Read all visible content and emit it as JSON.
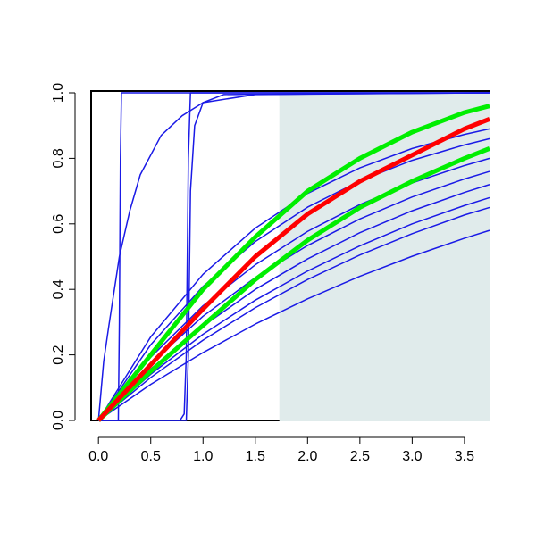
{
  "chart_data": {
    "type": "line",
    "xlim": [
      -0.07,
      3.74
    ],
    "ylim": [
      0,
      1
    ],
    "xticks": [
      {
        "value": 0,
        "label": "0.0"
      },
      {
        "value": 0.5,
        "label": "0.5"
      },
      {
        "value": 1,
        "label": "1.0"
      },
      {
        "value": 1.5,
        "label": "1.5"
      },
      {
        "value": 2,
        "label": "2.0"
      },
      {
        "value": 2.5,
        "label": "2.5"
      },
      {
        "value": 3,
        "label": "3.0"
      },
      {
        "value": 3.5,
        "label": "3.5"
      }
    ],
    "yticks": [
      {
        "value": 0,
        "label": "0.0"
      },
      {
        "value": 0.2,
        "label": "0.2"
      },
      {
        "value": 0.4,
        "label": "0.4"
      },
      {
        "value": 0.6,
        "label": "0.6"
      },
      {
        "value": 0.8,
        "label": "0.8"
      },
      {
        "value": 1,
        "label": "1.0"
      }
    ],
    "shaded_region": {
      "xlim": [
        1.73,
        3.74
      ],
      "color": "#e0ebeb"
    },
    "series": [
      {
        "color": "#1a1ae6",
        "width": 1.5,
        "x": [
          0,
          0.5,
          1,
          1.5,
          2,
          2.5,
          3,
          3.5,
          3.74
        ],
        "values": [
          0,
          0.255,
          0.446,
          0.587,
          0.693,
          0.771,
          0.83,
          0.873,
          0.89
        ]
      },
      {
        "color": "#1a1ae6",
        "width": 1.5,
        "x": [
          0,
          0.5,
          1,
          1.5,
          2,
          2.5,
          3,
          3.5,
          3.74
        ],
        "values": [
          0,
          0.231,
          0.409,
          0.546,
          0.651,
          0.731,
          0.794,
          0.841,
          0.86
        ]
      },
      {
        "color": "#1a1ae6",
        "width": 1.5,
        "x": [
          0,
          0.5,
          1,
          1.5,
          2,
          2.5,
          3,
          3.5,
          3.74
        ],
        "values": [
          0,
          0.193,
          0.35,
          0.475,
          0.577,
          0.659,
          0.725,
          0.778,
          0.8
        ]
      },
      {
        "color": "#1a1ae6",
        "width": 1.5,
        "x": [
          0,
          0.5,
          1,
          1.5,
          2,
          2.5,
          3,
          3.5,
          3.74
        ],
        "values": [
          0,
          0.174,
          0.318,
          0.436,
          0.534,
          0.615,
          0.682,
          0.737,
          0.76
        ]
      },
      {
        "color": "#1a1ae6",
        "width": 1.5,
        "x": [
          0,
          0.5,
          1,
          1.5,
          2,
          2.5,
          3,
          3.5,
          3.74
        ],
        "values": [
          0,
          0.157,
          0.288,
          0.4,
          0.493,
          0.573,
          0.64,
          0.696,
          0.72
        ]
      },
      {
        "color": "#1a1ae6",
        "width": 1.5,
        "x": [
          0,
          0.5,
          1,
          1.5,
          2,
          2.5,
          3,
          3.5,
          3.74
        ],
        "values": [
          0,
          0.141,
          0.263,
          0.367,
          0.456,
          0.533,
          0.6,
          0.656,
          0.68
        ]
      },
      {
        "color": "#1a1ae6",
        "width": 1.5,
        "x": [
          0,
          0.5,
          1,
          1.5,
          2,
          2.5,
          3,
          3.5,
          3.74
        ],
        "values": [
          0,
          0.131,
          0.245,
          0.344,
          0.43,
          0.505,
          0.57,
          0.627,
          0.65
        ]
      },
      {
        "color": "#1a1ae6",
        "width": 1.5,
        "x": [
          0,
          0.5,
          1,
          1.5,
          2,
          2.5,
          3,
          3.5,
          3.74
        ],
        "values": [
          0,
          0.11,
          0.207,
          0.294,
          0.371,
          0.44,
          0.501,
          0.556,
          0.58
        ]
      },
      {
        "color": "#1a1ae6",
        "width": 1.5,
        "x": [
          0,
          0.05,
          0.1,
          0.2,
          0.3,
          0.4,
          0.6,
          0.8,
          1,
          1.5,
          3.74
        ],
        "values": [
          0,
          0.18,
          0.29,
          0.5,
          0.64,
          0.75,
          0.87,
          0.93,
          0.97,
          0.995,
          1
        ]
      },
      {
        "color": "#1a1ae6",
        "width": 1.5,
        "x": [
          0,
          0.19,
          0.2,
          0.21,
          0.22,
          3.74
        ],
        "values": [
          0,
          0,
          0.3,
          0.8,
          1,
          1
        ]
      },
      {
        "color": "#1a1ae6",
        "width": 1.5,
        "x": [
          0,
          0.78,
          0.82,
          0.84,
          0.86,
          0.88,
          3.74
        ],
        "values": [
          0,
          0,
          0.02,
          0.2,
          0.8,
          1,
          1
        ]
      },
      {
        "color": "#1a1ae6",
        "width": 1.5,
        "x": [
          0,
          0.84,
          0.86,
          0.88,
          0.92,
          1,
          1.2,
          3.74
        ],
        "values": [
          0,
          0,
          0.2,
          0.7,
          0.9,
          0.97,
          0.995,
          1
        ]
      },
      {
        "color": "#00ee00",
        "width": 5,
        "x": [
          0,
          0.5,
          1,
          1.5,
          2,
          2.5,
          3,
          3.5,
          3.74
        ],
        "values": [
          0,
          0.2,
          0.4,
          0.56,
          0.7,
          0.8,
          0.88,
          0.94,
          0.96
        ]
      },
      {
        "color": "#00ee00",
        "width": 5,
        "x": [
          0,
          0.5,
          1,
          1.5,
          2,
          2.5,
          3,
          3.5,
          3.74
        ],
        "values": [
          0,
          0.15,
          0.29,
          0.43,
          0.55,
          0.65,
          0.73,
          0.8,
          0.83
        ]
      },
      {
        "color": "#ff0000",
        "width": 5,
        "x": [
          0,
          0.5,
          1,
          1.5,
          2,
          2.5,
          3,
          3.5,
          3.74
        ],
        "values": [
          0,
          0.17,
          0.34,
          0.5,
          0.63,
          0.73,
          0.81,
          0.89,
          0.92
        ]
      }
    ]
  }
}
